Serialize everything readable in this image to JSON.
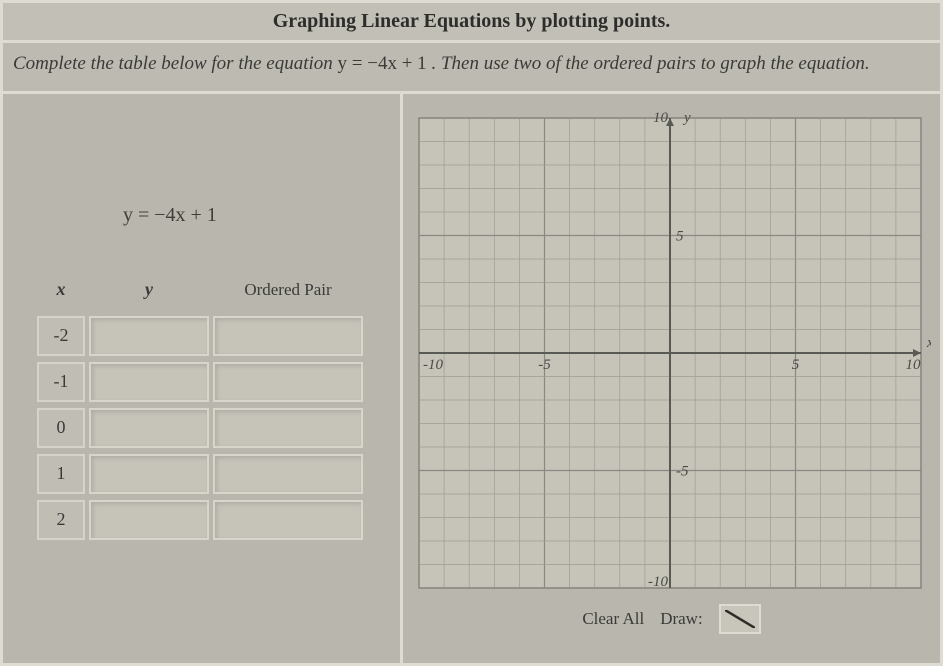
{
  "title": "Graphing Linear Equations by plotting points.",
  "instruction_prefix": "Complete the table below for the equation ",
  "instruction_equation": "y = −4x + 1",
  "instruction_suffix": ". Then use two of the ordered pairs to graph the equation.",
  "table": {
    "equation": "y = −4x + 1",
    "headers": {
      "x": "x",
      "y": "y",
      "op": "Ordered Pair"
    },
    "x_values": [
      "-2",
      "-1",
      "0",
      "1",
      "2"
    ]
  },
  "graph": {
    "xmin": -10,
    "xmax": 10,
    "ymin": -10,
    "ymax": 10,
    "major_step": 5,
    "minor_step": 1,
    "axis_color": "#5a5a55",
    "grid_color": "#9e9c92",
    "major_grid_color": "#8a8880",
    "bg_color": "#c6c4b9",
    "label_color": "#4a4a46",
    "x_label": "x",
    "y_label": "y",
    "tick_labels": {
      "neg10": "-10",
      "neg5": "-5",
      "pos5": "5",
      "pos10_top": "10",
      "pos10_right": "10",
      "bot": "-10"
    }
  },
  "tools": {
    "clear": "Clear All",
    "draw": "Draw:"
  }
}
